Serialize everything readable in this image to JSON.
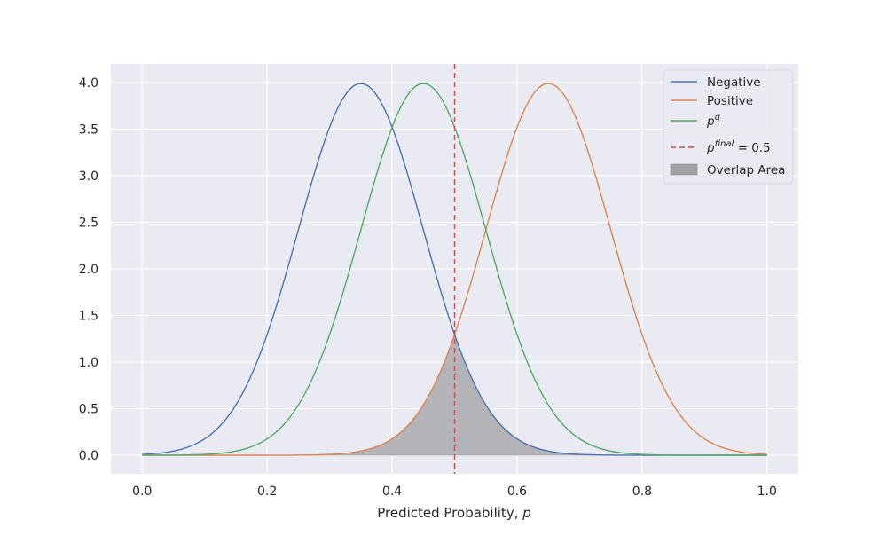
{
  "chart_data": {
    "type": "line",
    "title": "",
    "xlabel": "Predicted Probability, ",
    "xlabel_var": "p",
    "ylabel": "",
    "xlim": [
      -0.05,
      1.05
    ],
    "ylim": [
      -0.2,
      4.2
    ],
    "x_ticks": [
      0.0,
      0.2,
      0.4,
      0.6,
      0.8,
      1.0
    ],
    "x_tick_labels": [
      "0.0",
      "0.2",
      "0.4",
      "0.6",
      "0.8",
      "1.0"
    ],
    "y_ticks": [
      0.0,
      0.5,
      1.0,
      1.5,
      2.0,
      2.5,
      3.0,
      3.5,
      4.0
    ],
    "y_tick_labels": [
      "0.0",
      "0.5",
      "1.0",
      "1.5",
      "2.0",
      "2.5",
      "3.0",
      "3.5",
      "4.0"
    ],
    "grid": true,
    "legend_position": "top-right",
    "series": [
      {
        "name": "Negative",
        "kind": "curve",
        "distribution": "normal",
        "mean": 0.35,
        "std": 0.1,
        "x_range": [
          0,
          1
        ],
        "color": "#4c72b0"
      },
      {
        "name": "Positive",
        "kind": "curve",
        "distribution": "normal",
        "mean": 0.65,
        "std": 0.1,
        "x_range": [
          0,
          1
        ],
        "color": "#dd8452"
      },
      {
        "name_base": "p",
        "name_sup": "q",
        "kind": "curve",
        "distribution": "normal",
        "mean": 0.45,
        "std": 0.1,
        "x_range": [
          0,
          1
        ],
        "color": "#55a868"
      },
      {
        "name_base": "p",
        "name_sup": "final",
        "name_suffix": " = 0.5",
        "kind": "vline",
        "x": 0.5,
        "color": "#c44e52",
        "style": "dashed"
      },
      {
        "name": "Overlap Area",
        "kind": "fill",
        "description": "min(Negative, Positive)",
        "color": "#a0a0a4"
      }
    ]
  }
}
